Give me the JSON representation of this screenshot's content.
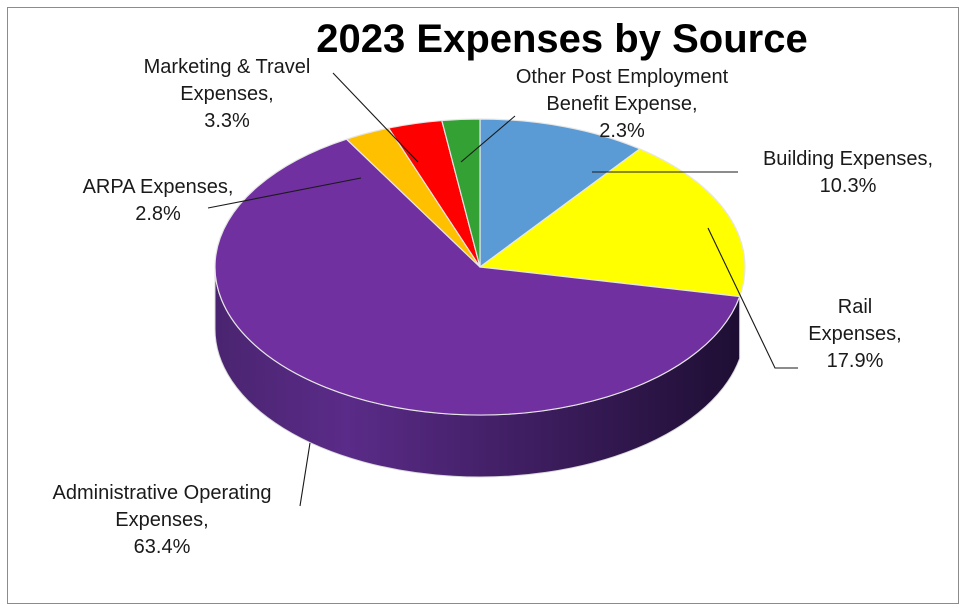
{
  "chart_data": {
    "type": "pie",
    "title": "2023 Expenses by Source",
    "slices": [
      {
        "label_lines": [
          "Building Expenses,",
          "10.3%"
        ],
        "value": 10.3,
        "color": "#5b9bd5"
      },
      {
        "label_lines": [
          "Rail",
          "Expenses,",
          "17.9%"
        ],
        "value": 17.9,
        "color": "#ffff00"
      },
      {
        "label_lines": [
          "Administrative Operating",
          "Expenses,",
          "63.4%"
        ],
        "value": 63.4,
        "color": "#7030a0"
      },
      {
        "label_lines": [
          "ARPA Expenses,",
          "2.8%"
        ],
        "value": 2.8,
        "color": "#ffc000"
      },
      {
        "label_lines": [
          "Marketing & Travel",
          "Expenses,",
          "3.3%"
        ],
        "value": 3.3,
        "color": "#ff0000"
      },
      {
        "label_lines": [
          "Other Post Employment",
          "Benefit Expense,",
          "2.3%"
        ],
        "value": 2.3,
        "color": "#33a133"
      }
    ],
    "start_angle_deg": 0,
    "direction": "clockwise",
    "style": "3d"
  }
}
